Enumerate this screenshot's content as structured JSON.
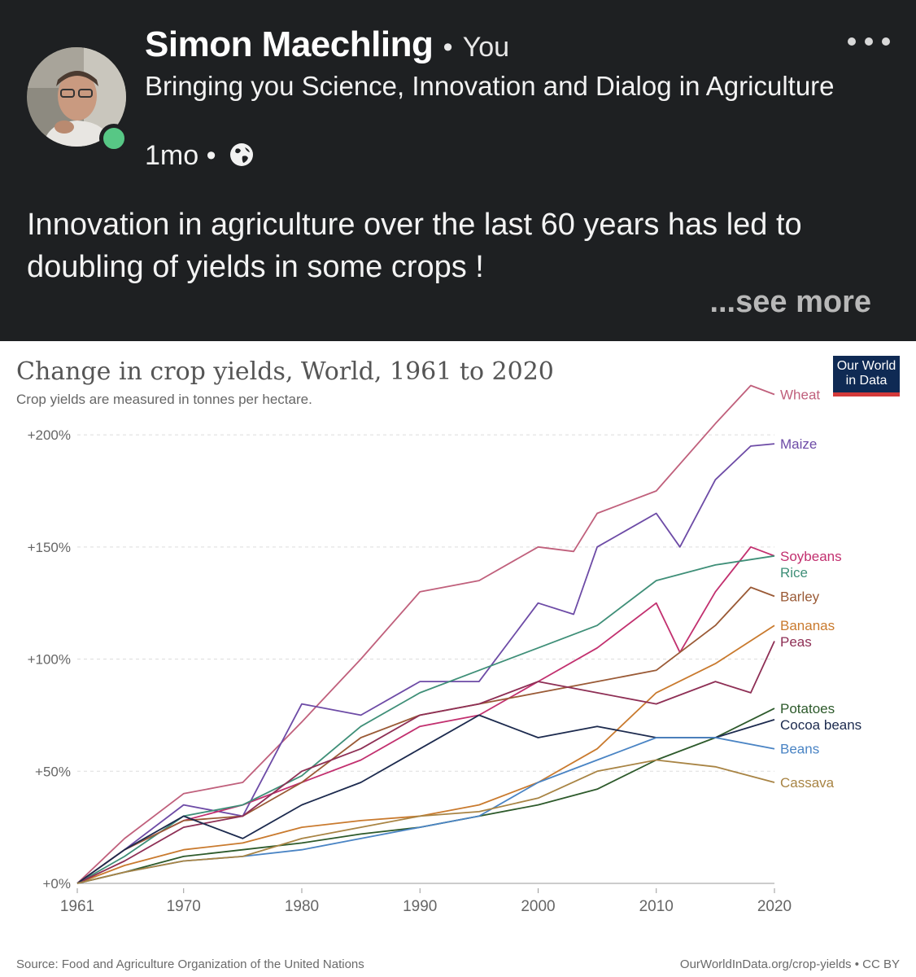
{
  "post": {
    "author": "Simon Maechling",
    "separator": "•",
    "relation": "You",
    "headline": "Bringing you Science, Innovation and Dialog in Agriculture",
    "age": "1mo",
    "meta_separator": "•",
    "visibility_icon": "globe-icon",
    "more_icon": "ellipsis-icon",
    "body": "Innovation in agriculture over the last 60 years has led to doubling of yields in some crops  !",
    "see_more": "...see more",
    "online_color": "#57c785"
  },
  "chart": {
    "logo_line1": "Our World",
    "logo_line2": "in Data",
    "source": "Source: Food and Agriculture Organization of the United Nations",
    "license": "OurWorldInData.org/crop-yields • CC BY"
  },
  "chart_data": {
    "type": "line",
    "title": "Change in crop yields, World, 1961 to 2020",
    "subtitle": "Crop yields are measured in tonnes per hectare.",
    "xlabel": "",
    "ylabel": "",
    "xlim": [
      1961,
      2020
    ],
    "ylim": [
      0,
      220
    ],
    "y_unit": "%",
    "grid": "horizontal dashed",
    "legend": "labels at line ends",
    "x_ticks": [
      {
        "value": 1961,
        "label": "1961"
      },
      {
        "value": 1970,
        "label": "1970"
      },
      {
        "value": 1980,
        "label": "1980"
      },
      {
        "value": 1990,
        "label": "1990"
      },
      {
        "value": 2000,
        "label": "2000"
      },
      {
        "value": 2010,
        "label": "2010"
      },
      {
        "value": 2020,
        "label": "2020"
      }
    ],
    "y_ticks": [
      {
        "value": 0,
        "label": "+0%"
      },
      {
        "value": 50,
        "label": "+50%"
      },
      {
        "value": 100,
        "label": "+100%"
      },
      {
        "value": 150,
        "label": "+150%"
      },
      {
        "value": 200,
        "label": "+200%"
      }
    ],
    "series": [
      {
        "name": "Wheat",
        "color": "#c0607c",
        "x": [
          1961,
          1965,
          1970,
          1975,
          1980,
          1985,
          1990,
          1995,
          2000,
          2003,
          2005,
          2010,
          2015,
          2018,
          2020
        ],
        "values": [
          0,
          20,
          40,
          45,
          72,
          100,
          130,
          135,
          150,
          148,
          165,
          175,
          205,
          222,
          218
        ]
      },
      {
        "name": "Maize",
        "color": "#6d4ba6",
        "x": [
          1961,
          1965,
          1970,
          1975,
          1980,
          1985,
          1990,
          1995,
          2000,
          2003,
          2005,
          2010,
          2012,
          2015,
          2018,
          2020
        ],
        "values": [
          0,
          15,
          35,
          30,
          80,
          75,
          90,
          90,
          125,
          120,
          150,
          165,
          150,
          180,
          195,
          196
        ]
      },
      {
        "name": "Soybeans",
        "color": "#c2306f",
        "x": [
          1961,
          1965,
          1970,
          1975,
          1980,
          1985,
          1990,
          1995,
          2000,
          2005,
          2010,
          2012,
          2015,
          2018,
          2020
        ],
        "values": [
          0,
          15,
          28,
          35,
          45,
          55,
          70,
          75,
          90,
          105,
          125,
          103,
          130,
          150,
          146
        ]
      },
      {
        "name": "Rice",
        "color": "#3f8f78",
        "x": [
          1961,
          1965,
          1970,
          1975,
          1980,
          1985,
          1990,
          1995,
          2000,
          2005,
          2010,
          2015,
          2020
        ],
        "values": [
          0,
          12,
          30,
          35,
          48,
          70,
          85,
          95,
          105,
          115,
          135,
          142,
          146
        ]
      },
      {
        "name": "Barley",
        "color": "#9a5a36",
        "x": [
          1961,
          1965,
          1970,
          1975,
          1980,
          1985,
          1990,
          1995,
          2000,
          2005,
          2010,
          2015,
          2018,
          2020
        ],
        "values": [
          0,
          15,
          28,
          30,
          45,
          65,
          75,
          80,
          85,
          90,
          95,
          115,
          132,
          128
        ]
      },
      {
        "name": "Bananas",
        "color": "#c97a2e",
        "x": [
          1961,
          1965,
          1970,
          1975,
          1980,
          1985,
          1990,
          1995,
          2000,
          2005,
          2010,
          2015,
          2020
        ],
        "values": [
          0,
          8,
          15,
          18,
          25,
          28,
          30,
          35,
          45,
          60,
          85,
          98,
          115
        ]
      },
      {
        "name": "Peas",
        "color": "#8e2f55",
        "x": [
          1961,
          1965,
          1970,
          1975,
          1980,
          1985,
          1990,
          1995,
          2000,
          2005,
          2010,
          2015,
          2018,
          2020
        ],
        "values": [
          0,
          10,
          25,
          30,
          50,
          60,
          75,
          80,
          90,
          85,
          80,
          90,
          85,
          108
        ]
      },
      {
        "name": "Potatoes",
        "color": "#2d5a2b",
        "x": [
          1961,
          1965,
          1970,
          1975,
          1980,
          1985,
          1990,
          1995,
          2000,
          2005,
          2010,
          2015,
          2020
        ],
        "values": [
          0,
          5,
          12,
          15,
          18,
          22,
          25,
          30,
          35,
          42,
          55,
          65,
          78
        ]
      },
      {
        "name": "Cocoa beans",
        "color": "#1c2a4e",
        "x": [
          1961,
          1965,
          1970,
          1975,
          1980,
          1985,
          1990,
          1995,
          2000,
          2005,
          2010,
          2015,
          2020
        ],
        "values": [
          0,
          15,
          30,
          20,
          35,
          45,
          60,
          75,
          65,
          70,
          65,
          65,
          73
        ]
      },
      {
        "name": "Beans",
        "color": "#4a84c4",
        "x": [
          1961,
          1965,
          1970,
          1975,
          1980,
          1985,
          1990,
          1995,
          2000,
          2005,
          2010,
          2015,
          2020
        ],
        "values": [
          0,
          5,
          10,
          12,
          15,
          20,
          25,
          30,
          45,
          55,
          65,
          65,
          60
        ]
      },
      {
        "name": "Cassava",
        "color": "#a88444",
        "x": [
          1961,
          1965,
          1970,
          1975,
          1980,
          1985,
          1990,
          1995,
          2000,
          2005,
          2010,
          2015,
          2020
        ],
        "values": [
          0,
          5,
          10,
          12,
          20,
          25,
          30,
          32,
          38,
          50,
          55,
          52,
          45
        ]
      }
    ]
  }
}
